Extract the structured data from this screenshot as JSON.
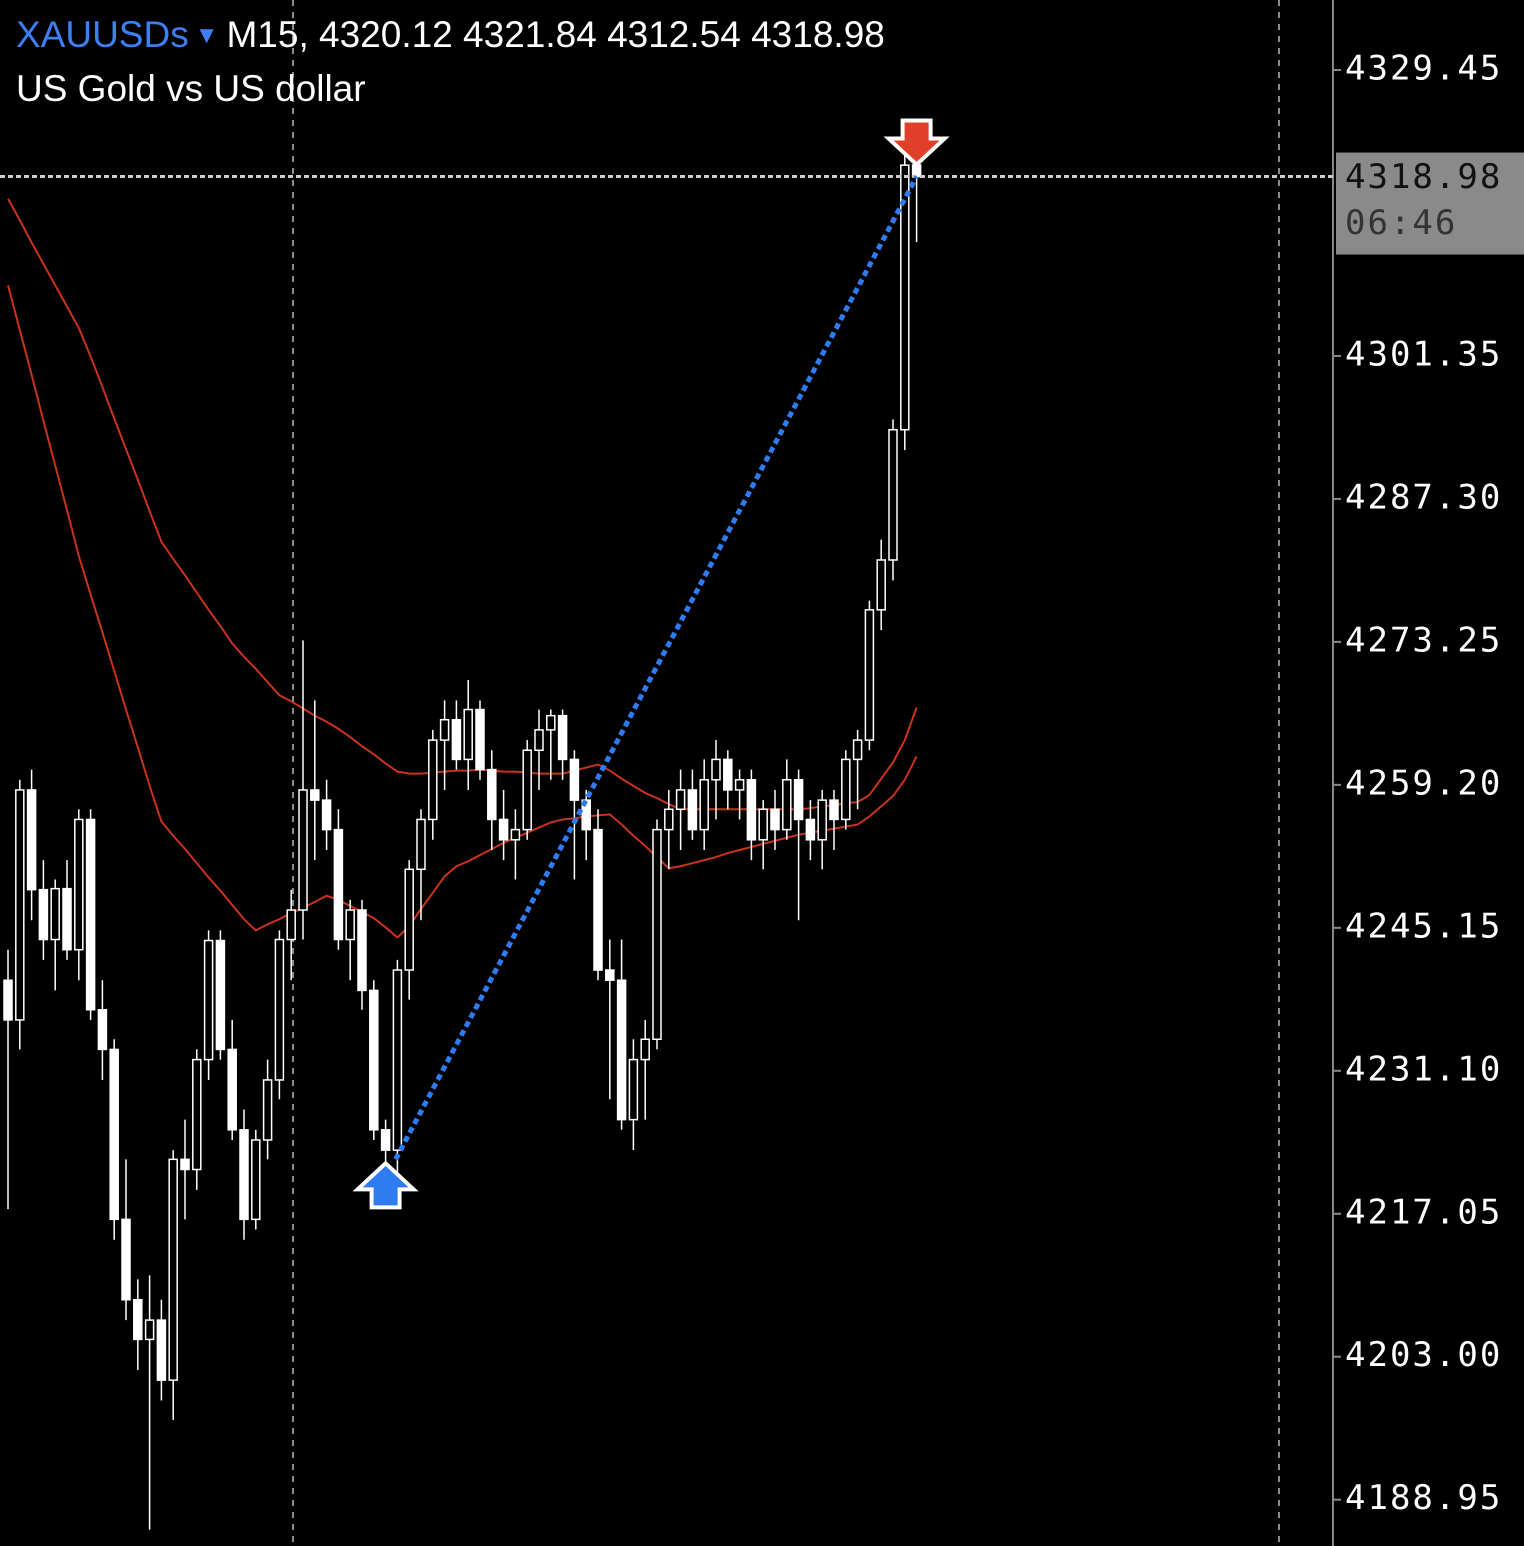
{
  "chart_data": {
    "type": "candlestick",
    "symbol": "XAUUSDs",
    "timeframe": "M15,",
    "description": "US Gold vs US dollar",
    "countdown": "06:46",
    "ylim": [
      4184.4,
      4336.33
    ],
    "yticks": [
      4329.45,
      4301.35,
      {
        "value": 4287.3,
        "label": "4287.30"
      },
      4273.25,
      {
        "value": 4259.2,
        "label": "4259.20"
      },
      4245.15,
      {
        "value": 4231.1,
        "label": "4231.10"
      },
      4217.05,
      {
        "value": 4203,
        "label": "4203.00"
      },
      4188.95
    ],
    "up_color": "#000000",
    "down_color": "#ffffff",
    "wick_color": "#ffffff",
    "candles": [
      [
        4240.0,
        4243.0,
        4217.5,
        4236.1
      ],
      [
        4236.1,
        4259.7,
        4233.2,
        4258.7
      ],
      [
        4258.7,
        4260.7,
        4245.9,
        4248.9
      ],
      [
        4248.9,
        4251.8,
        4242.0,
        4244.0
      ],
      [
        4244.0,
        4249.9,
        4239.0,
        4249.0
      ],
      [
        4249.0,
        4251.8,
        4242.0,
        4243.0
      ],
      [
        4243.0,
        4256.8,
        4240.0,
        4255.8
      ],
      [
        4255.8,
        4256.8,
        4236.1,
        4237.1
      ],
      [
        4237.1,
        4240.0,
        4230.2,
        4233.2
      ],
      [
        4233.2,
        4234.2,
        4214.5,
        4216.5
      ],
      [
        4216.5,
        4222.4,
        4206.6,
        4208.6
      ],
      [
        4208.6,
        4210.6,
        4201.7,
        4204.7
      ],
      [
        4204.7,
        4211.0,
        4186.0,
        4206.6
      ],
      [
        4206.6,
        4208.6,
        4198.7,
        4200.7
      ],
      [
        4200.7,
        4223.3,
        4196.8,
        4222.4
      ],
      [
        4222.4,
        4226.3,
        4216.5,
        4221.4
      ],
      [
        4221.4,
        4233.2,
        4219.4,
        4232.2
      ],
      [
        4232.2,
        4244.9,
        4230.2,
        4243.9
      ],
      [
        4243.9,
        4244.9,
        4232.2,
        4233.2
      ],
      [
        4233.2,
        4236.1,
        4224.3,
        4225.3
      ],
      [
        4225.3,
        4227.3,
        4214.5,
        4216.5
      ],
      [
        4216.5,
        4225.3,
        4215.5,
        4224.3
      ],
      [
        4224.3,
        4232.2,
        4222.4,
        4230.2
      ],
      [
        4230.2,
        4244.9,
        4228.3,
        4244.0
      ],
      [
        4244.0,
        4248.9,
        4240.0,
        4246.9
      ],
      [
        4246.9,
        4273.4,
        4244.0,
        4258.7
      ],
      [
        4258.7,
        4267.5,
        4251.8,
        4257.7
      ],
      [
        4257.7,
        4259.7,
        4252.8,
        4254.8
      ],
      [
        4254.8,
        4256.8,
        4243.0,
        4244.0
      ],
      [
        4244.0,
        4247.9,
        4240.0,
        4246.9
      ],
      [
        4246.9,
        4247.9,
        4237.1,
        4239.0
      ],
      [
        4239.0,
        4240.0,
        4224.3,
        4225.3
      ],
      [
        4225.3,
        4226.3,
        4221.4,
        4223.3
      ],
      [
        4223.3,
        4242.0,
        4220.4,
        4241.0
      ],
      [
        4241.0,
        4251.8,
        4238.1,
        4250.9
      ],
      [
        4250.9,
        4256.8,
        4245.9,
        4255.8
      ],
      [
        4255.8,
        4264.6,
        4253.8,
        4263.6
      ],
      [
        4263.6,
        4267.5,
        4258.7,
        4265.6
      ],
      [
        4265.6,
        4267.5,
        4260.7,
        4261.7
      ],
      [
        4261.7,
        4269.5,
        4258.7,
        4266.6
      ],
      [
        4266.6,
        4267.5,
        4259.7,
        4260.7
      ],
      [
        4260.7,
        4262.6,
        4252.8,
        4255.8
      ],
      [
        4255.8,
        4258.7,
        4251.8,
        4253.8
      ],
      [
        4253.8,
        4256.8,
        4249.9,
        4254.8
      ],
      [
        4254.8,
        4263.6,
        4253.8,
        4262.6
      ],
      [
        4262.6,
        4266.6,
        4258.7,
        4264.6
      ],
      [
        4264.6,
        4266.6,
        4259.7,
        4266.0
      ],
      [
        4266.0,
        4266.6,
        4259.7,
        4261.7
      ],
      [
        4261.7,
        4262.6,
        4249.9,
        4257.7
      ],
      [
        4257.7,
        4258.7,
        4251.8,
        4254.8
      ],
      [
        4254.8,
        4256.8,
        4240.0,
        4241.0
      ],
      [
        4241.0,
        4244.0,
        4228.3,
        4240.0
      ],
      [
        4240.0,
        4244.0,
        4225.3,
        4226.3
      ],
      [
        4226.3,
        4234.2,
        4223.3,
        4232.2
      ],
      [
        4232.2,
        4236.1,
        4226.3,
        4234.2
      ],
      [
        4234.2,
        4255.8,
        4233.2,
        4254.8
      ],
      [
        4254.8,
        4258.7,
        4250.9,
        4256.8
      ],
      [
        4256.8,
        4260.7,
        4252.8,
        4258.7
      ],
      [
        4258.7,
        4260.7,
        4253.8,
        4254.8
      ],
      [
        4254.8,
        4261.7,
        4252.8,
        4259.7
      ],
      [
        4259.7,
        4263.6,
        4255.8,
        4261.7
      ],
      [
        4261.7,
        4262.6,
        4256.8,
        4258.7
      ],
      [
        4258.7,
        4260.7,
        4255.8,
        4259.7
      ],
      [
        4259.7,
        4260.7,
        4251.8,
        4253.8
      ],
      [
        4253.8,
        4257.7,
        4250.9,
        4256.8
      ],
      [
        4256.8,
        4258.7,
        4252.8,
        4254.8
      ],
      [
        4254.8,
        4261.7,
        4253.8,
        4259.7
      ],
      [
        4259.7,
        4260.7,
        4245.9,
        4255.8
      ],
      [
        4255.8,
        4257.7,
        4251.8,
        4253.8
      ],
      [
        4253.8,
        4258.7,
        4250.9,
        4257.7
      ],
      [
        4257.7,
        4258.7,
        4252.8,
        4255.8
      ],
      [
        4255.8,
        4262.6,
        4254.8,
        4261.7
      ],
      [
        4261.7,
        4264.6,
        4256.8,
        4263.6
      ],
      [
        4263.6,
        4277.3,
        4262.6,
        4276.4
      ],
      [
        4276.4,
        4283.3,
        4274.4,
        4281.3
      ],
      [
        4281.3,
        4295.1,
        4279.3,
        4294.1
      ],
      [
        4294.1,
        4321.6,
        4292.1,
        4320.1
      ],
      [
        4320.12,
        4321.84,
        4312.54,
        4318.98
      ]
    ],
    "series": [
      {
        "color": "#c8321e",
        "values": [
          4308.3,
          4303.9,
          4299.5,
          4295.0,
          4290.6,
          4286.2,
          4281.7,
          4277.9,
          4274.2,
          4270.4,
          4266.6,
          4262.9,
          4259.1,
          4255.6,
          4254.2,
          4252.9,
          4251.5,
          4250.1,
          4248.8,
          4247.4,
          4246.0,
          4244.9,
          4245.5,
          4246.0,
          4246.6,
          4247.1,
          4247.7,
          4248.3,
          4247.9,
          4247.3,
          4246.7,
          4246.1,
          4245.2,
          4244.2,
          4245.3,
          4247.0,
          4248.6,
          4250.2,
          4251.2,
          4251.7,
          4252.3,
          4252.9,
          4253.5,
          4254.0,
          4254.5,
          4255.0,
          4255.5,
          4255.8,
          4255.9,
          4256.1,
          4256.2,
          4256.3,
          4255.3,
          4254.2,
          4253.2,
          4252.1,
          4251.0,
          4251.2,
          4251.5,
          4251.8,
          4252.1,
          4252.5,
          4252.8,
          4253.1,
          4253.4,
          4253.7,
          4254.0,
          4254.3,
          4254.5,
          4254.7,
          4254.9,
          4255.1,
          4255.3,
          4256.1,
          4257.1,
          4258.1,
          4259.7,
          4262.0
        ]
      },
      {
        "color": "#c8321e",
        "values": [
          4316.8,
          4314.7,
          4312.5,
          4310.4,
          4308.3,
          4306.2,
          4304.1,
          4301.3,
          4298.3,
          4295.2,
          4292.2,
          4289.2,
          4286.1,
          4283.1,
          4281.4,
          4279.8,
          4278.1,
          4276.4,
          4274.8,
          4273.1,
          4271.8,
          4270.6,
          4269.3,
          4268.0,
          4267.4,
          4266.7,
          4266.0,
          4265.4,
          4264.7,
          4263.9,
          4263.0,
          4262.2,
          4261.3,
          4260.5,
          4260.3,
          4260.3,
          4260.4,
          4260.5,
          4260.6,
          4260.6,
          4260.7,
          4260.6,
          4260.5,
          4260.5,
          4260.4,
          4260.3,
          4260.3,
          4260.3,
          4260.6,
          4260.9,
          4261.2,
          4260.6,
          4259.8,
          4259.1,
          4258.4,
          4257.9,
          4257.3,
          4256.8,
          4256.8,
          4256.8,
          4256.8,
          4256.8,
          4256.8,
          4256.8,
          4256.8,
          4256.8,
          4256.8,
          4256.8,
          4256.9,
          4257.1,
          4257.2,
          4257.4,
          4257.5,
          4258.2,
          4259.8,
          4261.4,
          4263.6,
          4266.8
        ]
      }
    ],
    "trade": {
      "entry_bar": 32,
      "entry_price": 4222.4,
      "color": "#2f7bf2",
      "exit_color": "#e0402a"
    }
  }
}
